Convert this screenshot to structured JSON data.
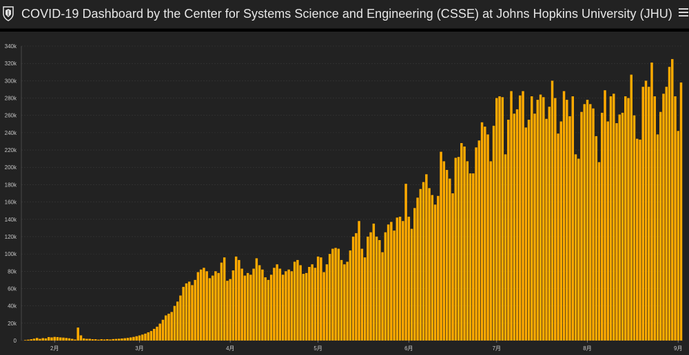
{
  "header": {
    "title": "COVID-19 Dashboard by the Center for Systems Science and Engineering (CSSE) at Johns Hopkins University (JHU)"
  },
  "colors": {
    "bar": "#ffaa00",
    "background": "#222222",
    "header_background": "#222222",
    "grid": "#3a3a3a"
  },
  "icons": [
    "jhu-shield-icon",
    "hamburger-menu-icon"
  ],
  "chart_data": {
    "type": "bar",
    "title": "",
    "xlabel": "",
    "ylabel": "",
    "ylim": [
      0,
      340000
    ],
    "grid": true,
    "y_ticks": [
      {
        "value": 0,
        "label": "0"
      },
      {
        "value": 20000,
        "label": "20k"
      },
      {
        "value": 40000,
        "label": "40k"
      },
      {
        "value": 60000,
        "label": "60k"
      },
      {
        "value": 80000,
        "label": "80k"
      },
      {
        "value": 100000,
        "label": "100k"
      },
      {
        "value": 120000,
        "label": "120k"
      },
      {
        "value": 140000,
        "label": "140k"
      },
      {
        "value": 160000,
        "label": "160k"
      },
      {
        "value": 180000,
        "label": "180k"
      },
      {
        "value": 200000,
        "label": "200k"
      },
      {
        "value": 220000,
        "label": "220k"
      },
      {
        "value": 240000,
        "label": "240k"
      },
      {
        "value": 260000,
        "label": "260k"
      },
      {
        "value": 280000,
        "label": "280k"
      },
      {
        "value": 300000,
        "label": "300k"
      },
      {
        "value": 320000,
        "label": "320k"
      },
      {
        "value": 340000,
        "label": "340k"
      }
    ],
    "x_ticks": [
      {
        "label": "2月",
        "day_index": 10
      },
      {
        "label": "3月",
        "day_index": 39
      },
      {
        "label": "4月",
        "day_index": 70
      },
      {
        "label": "5月",
        "day_index": 100
      },
      {
        "label": "6月",
        "day_index": 131
      },
      {
        "label": "7月",
        "day_index": 161
      },
      {
        "label": "8月",
        "day_index": 192
      },
      {
        "label": "9月",
        "day_index": 223
      }
    ],
    "values": [
      580,
      1000,
      1500,
      2200,
      3000,
      2000,
      2800,
      2500,
      4000,
      3600,
      4200,
      4000,
      3600,
      3400,
      3000,
      2600,
      2000,
      1200,
      15000,
      6000,
      2500,
      2000,
      2000,
      1500,
      1500,
      1000,
      1500,
      1200,
      1500,
      1200,
      1700,
      1900,
      2100,
      2400,
      2700,
      3100,
      3600,
      4200,
      5000,
      5900,
      6900,
      8000,
      9500,
      11000,
      13500,
      16000,
      19500,
      24000,
      29000,
      31000,
      33000,
      40000,
      45000,
      52000,
      62000,
      66000,
      68000,
      64000,
      70000,
      79000,
      82000,
      84000,
      80000,
      72000,
      75000,
      80000,
      78000,
      90000,
      96000,
      69000,
      71000,
      81000,
      97000,
      93000,
      83000,
      75000,
      78000,
      76000,
      83000,
      95000,
      87000,
      82000,
      73000,
      70000,
      76000,
      84000,
      88000,
      83000,
      76000,
      80000,
      82000,
      80000,
      91000,
      93000,
      87000,
      77000,
      78000,
      85000,
      88000,
      84000,
      97000,
      96000,
      79000,
      88000,
      100000,
      106000,
      107000,
      106000,
      93000,
      88000,
      91000,
      104000,
      120000,
      124000,
      138000,
      106000,
      96000,
      120000,
      125000,
      135000,
      120000,
      116000,
      102000,
      125000,
      134000,
      137000,
      127000,
      142000,
      143000,
      138000,
      181000,
      143000,
      129000,
      153000,
      165000,
      175000,
      183000,
      192000,
      176000,
      168000,
      157000,
      167000,
      218000,
      207000,
      197000,
      187000,
      170000,
      211000,
      212000,
      228000,
      224000,
      207000,
      193000,
      193000,
      223000,
      231000,
      252000,
      247000,
      238000,
      207000,
      248000,
      280000,
      282000,
      281000,
      215000,
      255000,
      288000,
      262000,
      267000,
      283000,
      288000,
      246000,
      255000,
      282000,
      262000,
      278000,
      284000,
      281000,
      256000,
      270000,
      300000,
      280000,
      239000,
      253000,
      288000,
      278000,
      259000,
      282000,
      215000,
      210000,
      264000,
      273000,
      278000,
      273000,
      268000,
      236000,
      206000,
      263000,
      289000,
      253000,
      282000,
      285000,
      251000,
      261000,
      263000,
      282000,
      280000,
      307000,
      260000,
      233000,
      232000,
      293000,
      300000,
      293000,
      321000,
      282000,
      238000,
      264000,
      285000,
      293000,
      316000,
      325000,
      282000,
      242000,
      298000
    ]
  }
}
